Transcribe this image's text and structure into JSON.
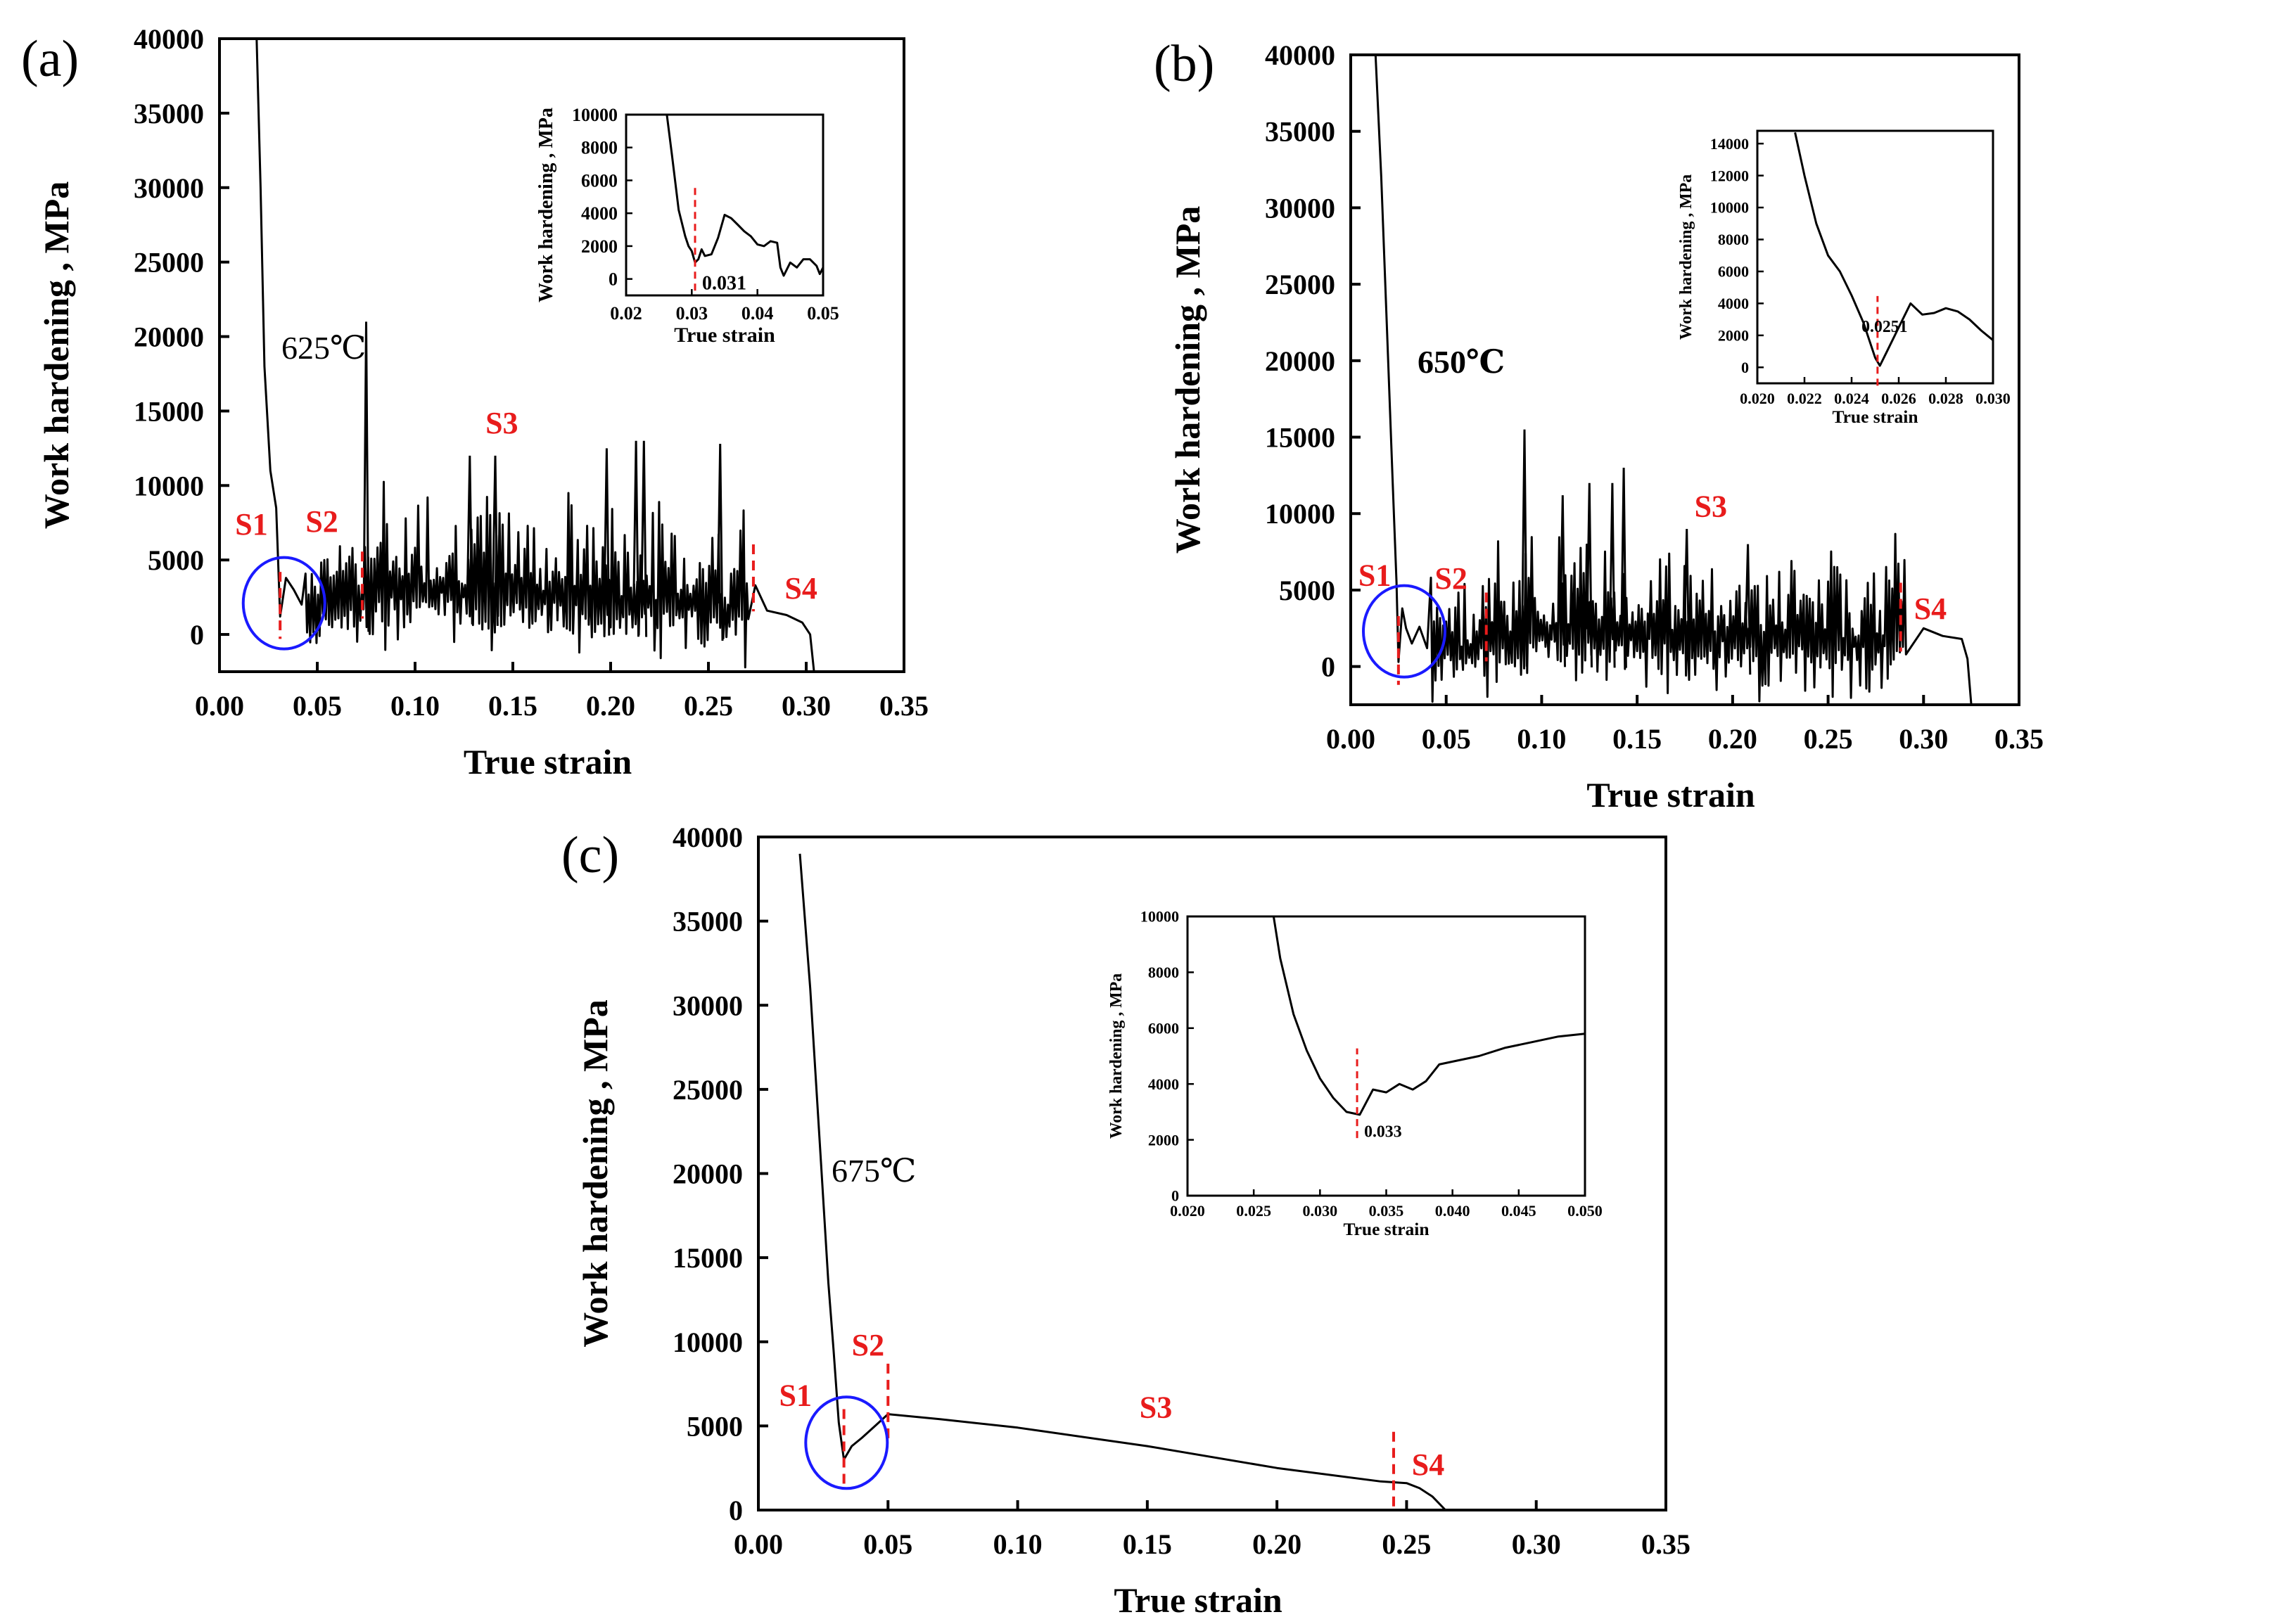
{
  "colors": {
    "line": "#000000",
    "stage": "#e81c1c",
    "circle": "#1a1aff",
    "axis": "#000000"
  },
  "chart_data": [
    {
      "panel": "(a)",
      "type": "line",
      "xlabel": "True strain",
      "ylabel": "Work hardening , MPa",
      "xlim": [
        0,
        0.35
      ],
      "ylim": [
        -2500,
        40000
      ],
      "xticks": [
        "0.00",
        "0.05",
        "0.10",
        "0.15",
        "0.20",
        "0.25",
        "0.30",
        "0.35"
      ],
      "yticks": [
        "0",
        "5000",
        "10000",
        "15000",
        "20000",
        "25000",
        "30000",
        "35000",
        "40000"
      ],
      "temperature": "625℃",
      "stages": [
        {
          "label": "S1",
          "x": 0.008,
          "y": 6700
        },
        {
          "label": "S2",
          "x": 0.044,
          "y": 6900
        },
        {
          "label": "S3",
          "x": 0.136,
          "y": 13500
        },
        {
          "label": "S4",
          "x": 0.289,
          "y": 2400
        }
      ],
      "markers": [
        0.031,
        0.073,
        0.273
      ],
      "circle": {
        "x": 0.033,
        "y": 2100
      },
      "series": [
        {
          "kind": "serrated",
          "x_end": 0.304,
          "serr_start": 0.044,
          "serr_end": 0.27,
          "amp": 5000,
          "peaks": [
            [
              0.075,
              21000
            ],
            [
              0.128,
              12000
            ],
            [
              0.141,
              12000
            ],
            [
              0.198,
              12500
            ],
            [
              0.213,
              13000
            ],
            [
              0.217,
              13000
            ],
            [
              0.256,
              12800
            ]
          ],
          "points": [
            [
              0.019,
              40000
            ],
            [
              0.021,
              30000
            ],
            [
              0.023,
              18000
            ],
            [
              0.026,
              11000
            ],
            [
              0.029,
              8500
            ],
            [
              0.031,
              1200
            ],
            [
              0.034,
              3800
            ],
            [
              0.038,
              3000
            ],
            [
              0.042,
              2000
            ],
            [
              0.045,
              800
            ],
            [
              0.05,
              2200
            ],
            [
              0.06,
              2500
            ],
            [
              0.07,
              2400
            ],
            [
              0.09,
              3500
            ],
            [
              0.15,
              3000
            ],
            [
              0.2,
              2400
            ],
            [
              0.25,
              2200
            ],
            [
              0.26,
              2000
            ],
            [
              0.27,
              2300
            ],
            [
              0.274,
              3300
            ],
            [
              0.28,
              1600
            ],
            [
              0.29,
              1300
            ],
            [
              0.298,
              800
            ],
            [
              0.302,
              0
            ],
            [
              0.304,
              -2500
            ]
          ]
        }
      ],
      "inset": {
        "xlabel": "True strain",
        "ylabel": "Work hardening , MPa",
        "xlim": [
          0.02,
          0.05
        ],
        "ylim": [
          -1000,
          10000
        ],
        "xticks": [
          "0.02",
          "0.03",
          "0.04",
          "0.05"
        ],
        "yticks": [
          "0",
          "2000",
          "4000",
          "6000",
          "8000",
          "10000"
        ],
        "marker": {
          "x": 0.0305,
          "label": "0.031"
        },
        "points": [
          [
            0.0262,
            10000
          ],
          [
            0.027,
            7500
          ],
          [
            0.028,
            4200
          ],
          [
            0.029,
            2600
          ],
          [
            0.0295,
            2000
          ],
          [
            0.03,
            1700
          ],
          [
            0.0305,
            1000
          ],
          [
            0.031,
            1200
          ],
          [
            0.0315,
            1800
          ],
          [
            0.032,
            1400
          ],
          [
            0.033,
            1500
          ],
          [
            0.034,
            2500
          ],
          [
            0.035,
            3900
          ],
          [
            0.036,
            3700
          ],
          [
            0.037,
            3300
          ],
          [
            0.038,
            2900
          ],
          [
            0.039,
            2600
          ],
          [
            0.04,
            2100
          ],
          [
            0.041,
            2000
          ],
          [
            0.042,
            2300
          ],
          [
            0.043,
            2200
          ],
          [
            0.0435,
            700
          ],
          [
            0.044,
            200
          ],
          [
            0.045,
            1000
          ],
          [
            0.046,
            700
          ],
          [
            0.047,
            1200
          ],
          [
            0.048,
            1200
          ],
          [
            0.049,
            800
          ],
          [
            0.0495,
            300
          ],
          [
            0.05,
            700
          ]
        ]
      }
    },
    {
      "panel": "(b)",
      "type": "line",
      "xlabel": "True strain",
      "ylabel": "Work hardening , MPa",
      "xlim": [
        0,
        0.35
      ],
      "ylim": [
        -2500,
        40000
      ],
      "xticks": [
        "0.00",
        "0.05",
        "0.10",
        "0.15",
        "0.20",
        "0.25",
        "0.30",
        "0.35"
      ],
      "yticks": [
        "0",
        "5000",
        "10000",
        "15000",
        "20000",
        "25000",
        "30000",
        "35000",
        "40000"
      ],
      "temperature": "650℃",
      "stages": [
        {
          "label": "S1",
          "x": 0.004,
          "y": 5300
        },
        {
          "label": "S2",
          "x": 0.044,
          "y": 5100
        },
        {
          "label": "S3",
          "x": 0.18,
          "y": 9800
        },
        {
          "label": "S4",
          "x": 0.295,
          "y": 3100
        }
      ],
      "markers": [
        0.025,
        0.071,
        0.288
      ],
      "circle": {
        "x": 0.028,
        "y": 2300
      },
      "series": [
        {
          "kind": "serrated",
          "x_end": 0.325,
          "serr_start": 0.042,
          "serr_end": 0.29,
          "amp": 4500,
          "peaks": [
            [
              0.091,
              15500
            ],
            [
              0.111,
              11200
            ],
            [
              0.125,
              12000
            ],
            [
              0.137,
              12000
            ],
            [
              0.143,
              13000
            ],
            [
              0.176,
              9000
            ],
            [
              0.208,
              8000
            ]
          ],
          "points": [
            [
              0.013,
              40000
            ],
            [
              0.016,
              32000
            ],
            [
              0.019,
              22000
            ],
            [
              0.022,
              12000
            ],
            [
              0.024,
              5500
            ],
            [
              0.025,
              300
            ],
            [
              0.027,
              3800
            ],
            [
              0.029,
              2500
            ],
            [
              0.032,
              1500
            ],
            [
              0.036,
              2600
            ],
            [
              0.04,
              1200
            ],
            [
              0.05,
              1500
            ],
            [
              0.06,
              1200
            ],
            [
              0.07,
              1800
            ],
            [
              0.09,
              2500
            ],
            [
              0.15,
              2400
            ],
            [
              0.2,
              2000
            ],
            [
              0.25,
              1800
            ],
            [
              0.28,
              2000
            ],
            [
              0.29,
              2600
            ],
            [
              0.3,
              2500
            ],
            [
              0.31,
              2000
            ],
            [
              0.32,
              1800
            ],
            [
              0.323,
              500
            ],
            [
              0.325,
              -2500
            ]
          ]
        }
      ],
      "inset": {
        "xlabel": "True strain",
        "ylabel": "Work hardening , MPa",
        "xlim": [
          0.02,
          0.03
        ],
        "ylim": [
          -1000,
          14800
        ],
        "xticks": [
          "0.020",
          "0.022",
          "0.024",
          "0.026",
          "0.028",
          "0.030"
        ],
        "yticks": [
          "0",
          "2000",
          "4000",
          "6000",
          "8000",
          "10000",
          "12000",
          "14000"
        ],
        "marker": {
          "x": 0.0251,
          "label": "0.0251"
        },
        "points": [
          [
            0.0216,
            14700
          ],
          [
            0.022,
            12000
          ],
          [
            0.0225,
            9000
          ],
          [
            0.023,
            7000
          ],
          [
            0.0235,
            6000
          ],
          [
            0.024,
            4500
          ],
          [
            0.0245,
            2800
          ],
          [
            0.025,
            600
          ],
          [
            0.0252,
            100
          ],
          [
            0.0255,
            1000
          ],
          [
            0.026,
            2500
          ],
          [
            0.0265,
            4000
          ],
          [
            0.027,
            3300
          ],
          [
            0.0275,
            3400
          ],
          [
            0.028,
            3700
          ],
          [
            0.0285,
            3500
          ],
          [
            0.029,
            3000
          ],
          [
            0.0295,
            2300
          ],
          [
            0.03,
            1700
          ]
        ]
      }
    },
    {
      "panel": "(c)",
      "type": "line",
      "xlabel": "True strain",
      "ylabel": "Work hardening , MPa",
      "xlim": [
        0,
        0.35
      ],
      "ylim": [
        0,
        40000
      ],
      "xticks": [
        "0.00",
        "0.05",
        "0.10",
        "0.15",
        "0.20",
        "0.25",
        "0.30",
        "0.35"
      ],
      "yticks": [
        "0",
        "5000",
        "10000",
        "15000",
        "20000",
        "25000",
        "30000",
        "35000",
        "40000"
      ],
      "temperature": "675℃",
      "stages": [
        {
          "label": "S1",
          "x": 0.008,
          "y": 6200
        },
        {
          "label": "S2",
          "x": 0.036,
          "y": 9200
        },
        {
          "label": "S3",
          "x": 0.147,
          "y": 5500
        },
        {
          "label": "S4",
          "x": 0.252,
          "y": 2100
        }
      ],
      "markers": [
        0.033,
        0.05,
        0.245
      ],
      "circle": {
        "x": 0.034,
        "y": 4000
      },
      "series": [
        {
          "kind": "smooth",
          "points": [
            [
              0.016,
              39000
            ],
            [
              0.02,
              31000
            ],
            [
              0.024,
              21000
            ],
            [
              0.027,
              13500
            ],
            [
              0.029,
              9500
            ],
            [
              0.031,
              5200
            ],
            [
              0.033,
              3000
            ],
            [
              0.036,
              3800
            ],
            [
              0.04,
              4300
            ],
            [
              0.045,
              5000
            ],
            [
              0.05,
              5700
            ],
            [
              0.07,
              5400
            ],
            [
              0.1,
              4900
            ],
            [
              0.15,
              3800
            ],
            [
              0.2,
              2500
            ],
            [
              0.24,
              1700
            ],
            [
              0.25,
              1600
            ],
            [
              0.255,
              1300
            ],
            [
              0.26,
              800
            ],
            [
              0.265,
              0
            ]
          ]
        }
      ],
      "inset": {
        "xlabel": "True strain",
        "ylabel": "Work hardening , MPa",
        "xlim": [
          0.02,
          0.05
        ],
        "ylim": [
          0,
          10000
        ],
        "xticks": [
          "0.020",
          "0.025",
          "0.030",
          "0.035",
          "0.040",
          "0.045",
          "0.050"
        ],
        "yticks": [
          "0",
          "2000",
          "4000",
          "6000",
          "8000",
          "10000"
        ],
        "marker": {
          "x": 0.0328,
          "label": "0.033"
        },
        "points": [
          [
            0.0265,
            10000
          ],
          [
            0.027,
            8500
          ],
          [
            0.028,
            6500
          ],
          [
            0.029,
            5200
          ],
          [
            0.03,
            4200
          ],
          [
            0.031,
            3500
          ],
          [
            0.032,
            3000
          ],
          [
            0.033,
            2900
          ],
          [
            0.034,
            3800
          ],
          [
            0.035,
            3700
          ],
          [
            0.036,
            4000
          ],
          [
            0.037,
            3800
          ],
          [
            0.038,
            4100
          ],
          [
            0.039,
            4700
          ],
          [
            0.04,
            4800
          ],
          [
            0.042,
            5000
          ],
          [
            0.044,
            5300
          ],
          [
            0.046,
            5500
          ],
          [
            0.048,
            5700
          ],
          [
            0.05,
            5800
          ]
        ]
      }
    }
  ]
}
